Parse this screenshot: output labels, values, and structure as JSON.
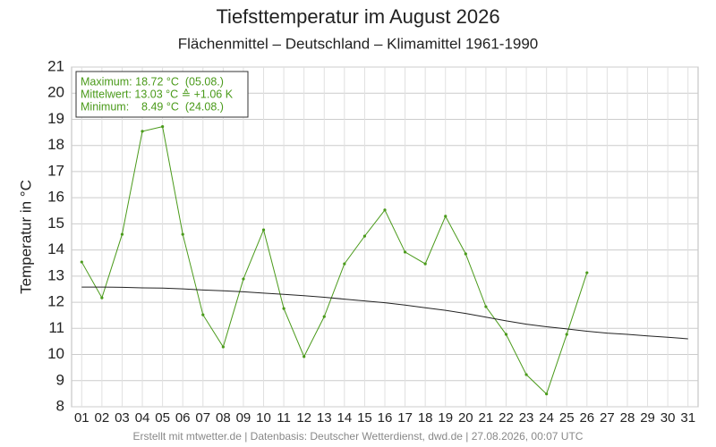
{
  "chart_data": {
    "type": "line",
    "title": "Tiefsttemperatur im August 2026",
    "subtitle": "Flächenmittel – Deutschland – Klimamittel 1961-1990",
    "y_label": "Temperatur in °C",
    "footer": "Erstellt mit mtwetter.de | Datenbasis: Deutscher Wetterdienst, dwd.de | 27.08.2026, 00:07 UTC",
    "annotations": [
      "Maximum: 18.72 °C  (05.08.)",
      "Mittelwert: 13.03 °C ≙ +1.06 K",
      "Minimum:    8.49 °C  (24.08.)"
    ],
    "categories": [
      "01",
      "02",
      "03",
      "04",
      "05",
      "06",
      "07",
      "08",
      "09",
      "10",
      "11",
      "12",
      "13",
      "14",
      "15",
      "16",
      "17",
      "18",
      "19",
      "20",
      "21",
      "22",
      "23",
      "24",
      "25",
      "26",
      "27",
      "28",
      "29",
      "30",
      "31"
    ],
    "series": [
      {
        "color": "#4a9a1a",
        "values": [
          13.54,
          12.17,
          14.6,
          18.54,
          18.72,
          14.6,
          11.52,
          10.29,
          12.89,
          14.77,
          11.76,
          9.92,
          11.45,
          13.47,
          14.53,
          15.53,
          13.92,
          13.47,
          15.29,
          13.85,
          11.83,
          10.77,
          9.23,
          8.49,
          10.77,
          13.13,
          null,
          null,
          null,
          null,
          null
        ]
      },
      {
        "color": "#222222",
        "values": [
          12.58,
          12.58,
          12.57,
          12.55,
          12.54,
          12.51,
          12.47,
          12.44,
          12.4,
          12.35,
          12.3,
          12.25,
          12.19,
          12.12,
          12.05,
          11.98,
          11.89,
          11.79,
          11.69,
          11.57,
          11.43,
          11.29,
          11.16,
          11.06,
          10.98,
          10.89,
          10.82,
          10.77,
          10.71,
          10.66,
          10.6
        ]
      }
    ],
    "ylim": [
      8,
      21
    ],
    "yticks": [
      8,
      9,
      10,
      11,
      12,
      13,
      14,
      15,
      16,
      17,
      18,
      19,
      20,
      21
    ],
    "grid": true
  }
}
